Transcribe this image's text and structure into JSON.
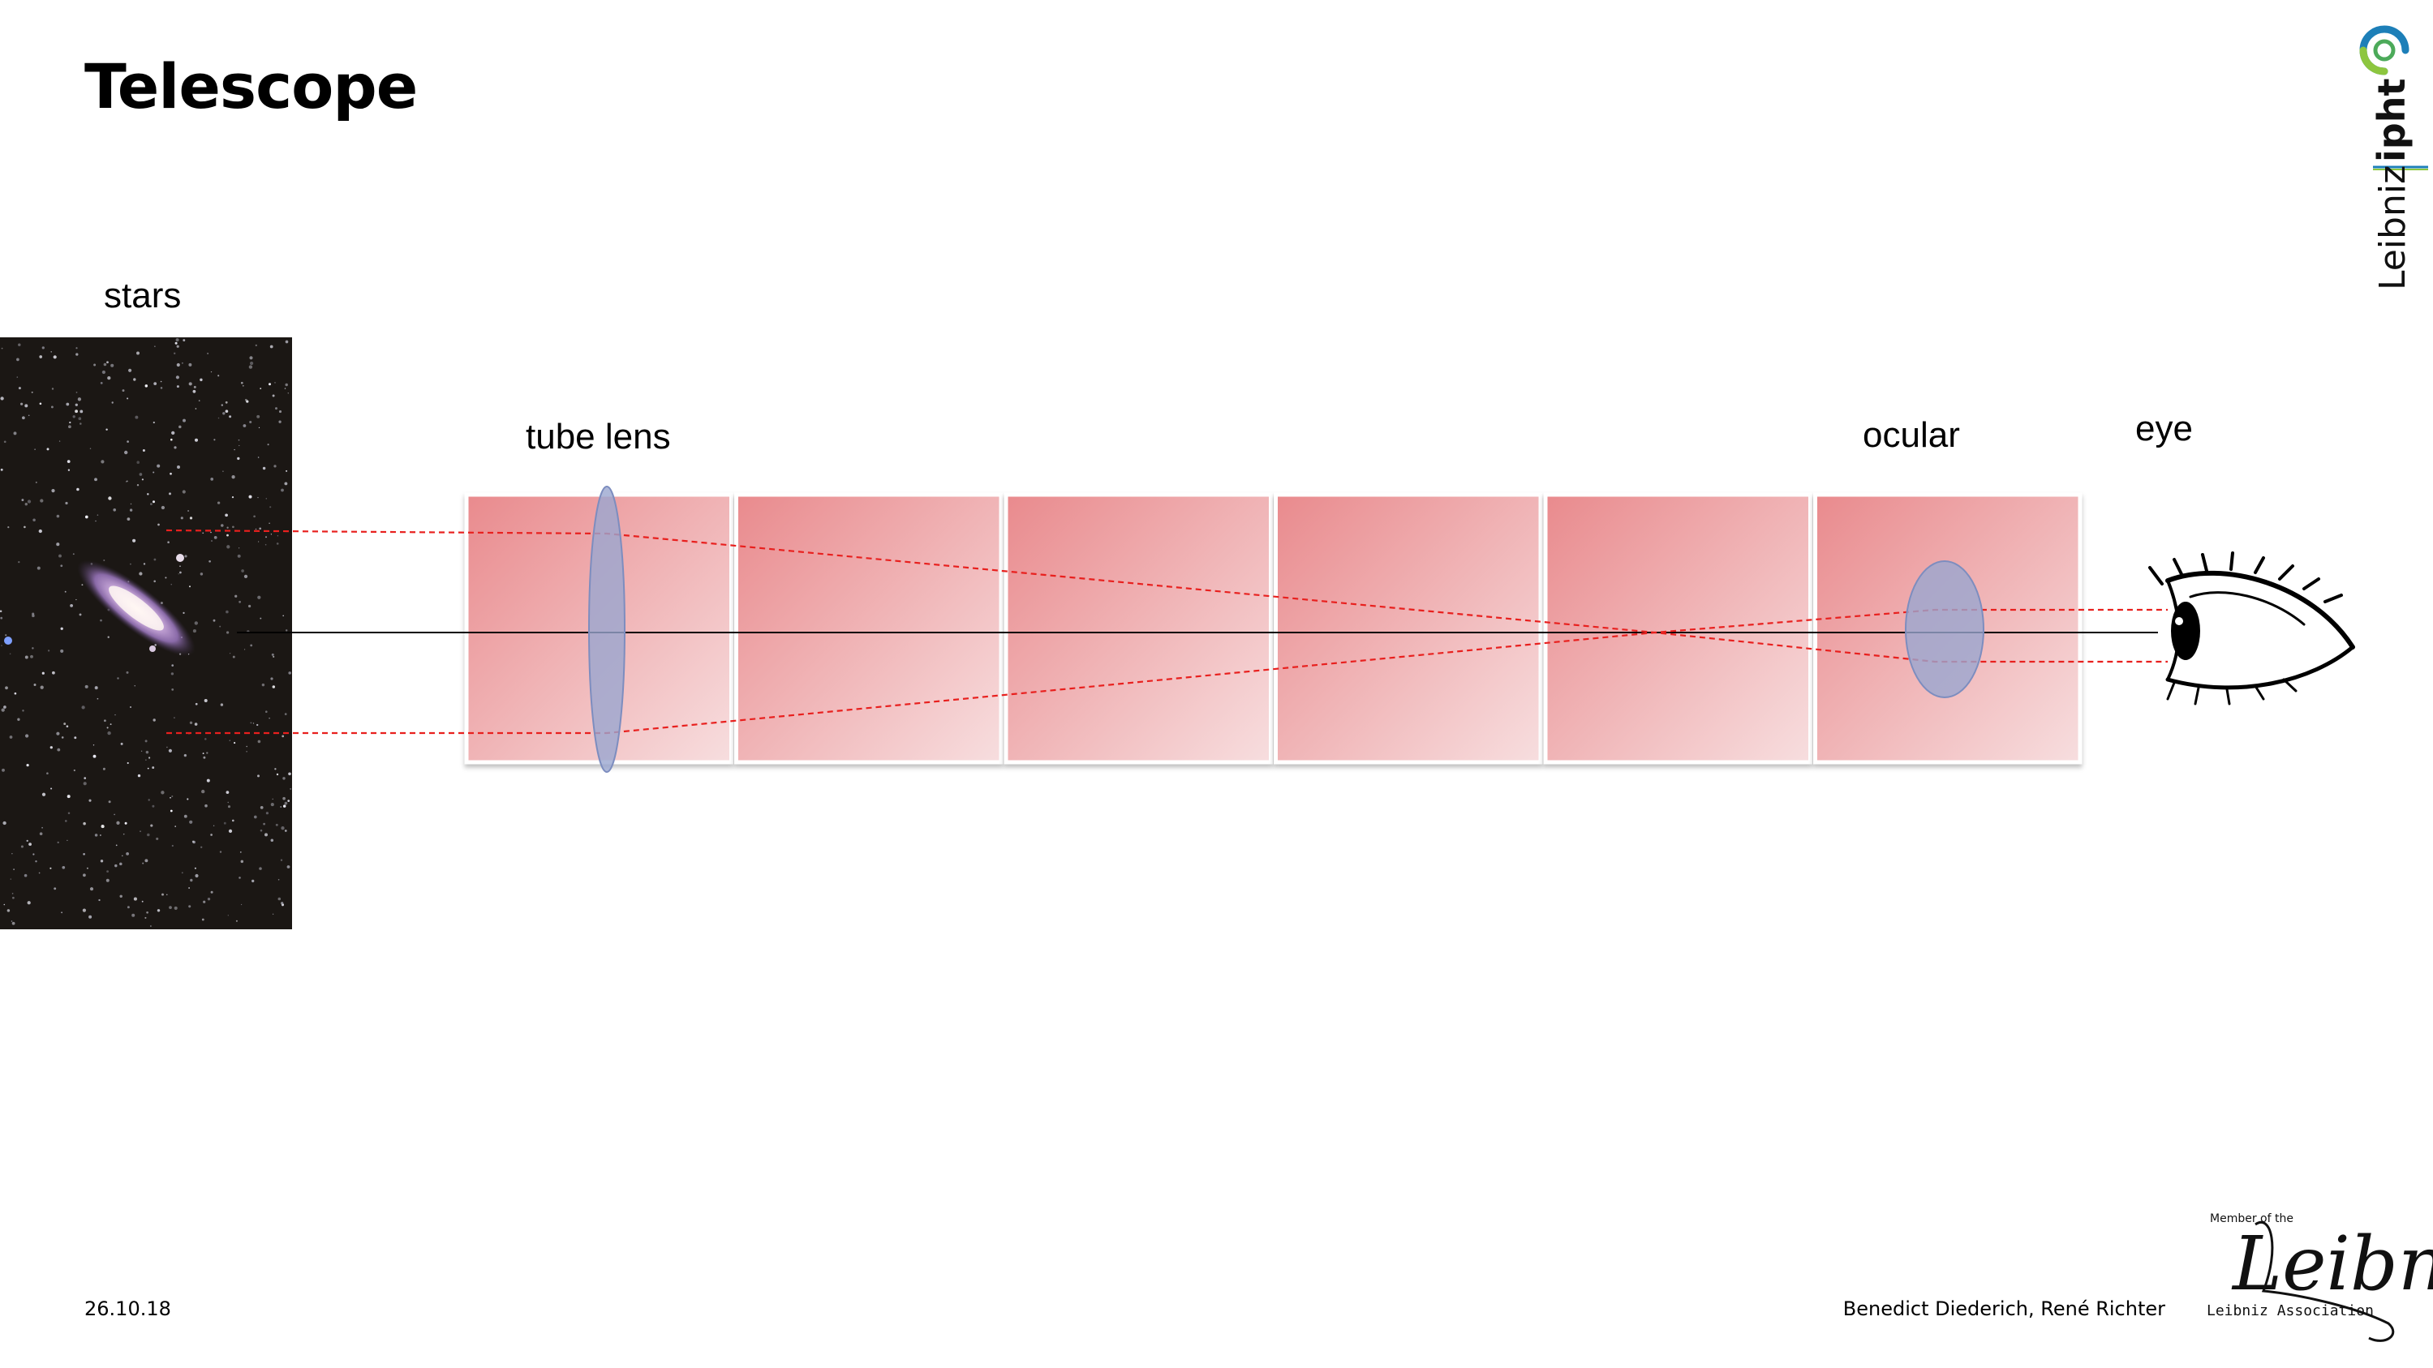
{
  "slide": {
    "title": "Telescope",
    "date": "26.10.18",
    "authors": "Benedict Diederich, René Richter"
  },
  "diagram": {
    "labels": {
      "stars": "stars",
      "tube_lens": "tube lens",
      "ocular": "ocular",
      "eye": "eye"
    },
    "tube_segments": 6,
    "colors": {
      "tube_fill_start": "#e98a8d",
      "tube_fill_end": "#f7dedf",
      "lens_fill": "#9aa6cf",
      "lens_stroke": "#7d8dbf",
      "ray": "#e8201e",
      "axis": "#000000",
      "sky": "#1b1714"
    }
  },
  "logos": {
    "ipht_text": "Leibniz ipht",
    "leibniz_member_text": "Member of the",
    "leibniz_script": "Leibniz",
    "leibniz_association_text": "Leibniz Association"
  }
}
